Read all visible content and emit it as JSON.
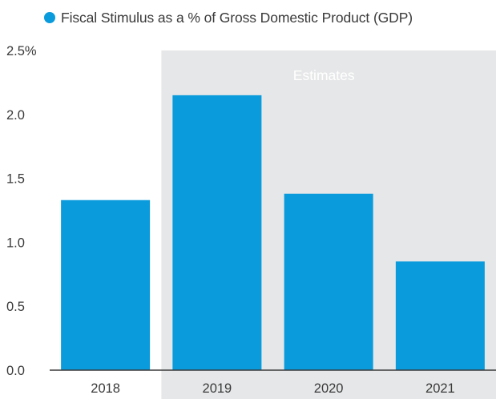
{
  "legend": {
    "label": "Fiscal Stimulus as a % of Gross Domestic Product (GDP)",
    "color": "#0a9bdc"
  },
  "chart_data": {
    "type": "bar",
    "categories": [
      "2018",
      "2019",
      "2020",
      "2021"
    ],
    "series": [
      {
        "name": "Fiscal Stimulus as a % of Gross Domestic Product (GDP)",
        "values": [
          1.33,
          2.15,
          1.38,
          0.85
        ],
        "color": "#0a9bdc"
      }
    ],
    "ylim": [
      0,
      2.5
    ],
    "yticks": [
      "0.0",
      "0.5",
      "1.0",
      "1.5",
      "2.0",
      "2.5%"
    ],
    "grid": false,
    "legend_position": "top-left",
    "shaded_region": {
      "label": "Estimates",
      "from_category": "2019",
      "to_category": "2021",
      "color": "#e6e7e8"
    }
  }
}
